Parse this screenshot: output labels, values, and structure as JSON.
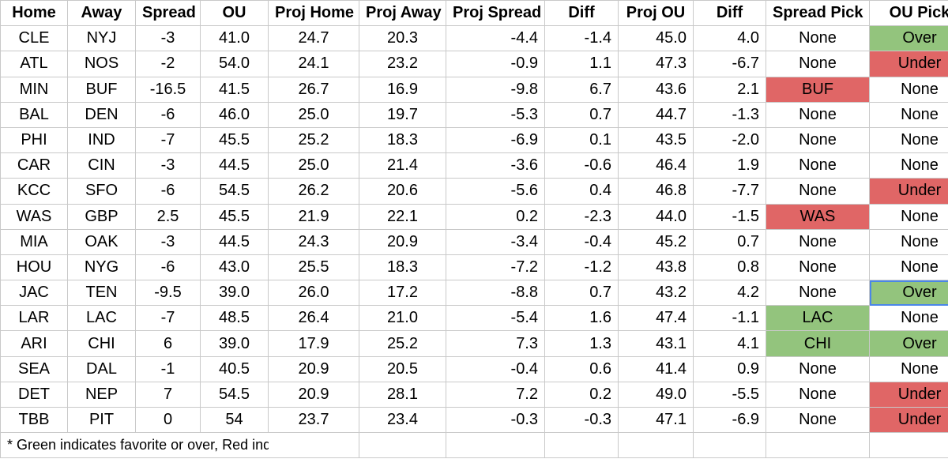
{
  "headers": [
    "Home",
    "Away",
    "Spread",
    "OU",
    "Proj Home",
    "Proj Away",
    "Proj Spread",
    "Diff",
    "Proj OU",
    "Diff",
    "Spread Pick",
    "OU Pick"
  ],
  "rows": [
    {
      "home": "CLE",
      "away": "NYJ",
      "spread": "-3",
      "ou": "41.0",
      "proj_home": "24.7",
      "proj_away": "20.3",
      "proj_spread": "-4.4",
      "diff1": "-1.4",
      "proj_ou": "45.0",
      "diff2": "4.0",
      "spread_pick": "None",
      "ou_pick": "Over"
    },
    {
      "home": "ATL",
      "away": "NOS",
      "spread": "-2",
      "ou": "54.0",
      "proj_home": "24.1",
      "proj_away": "23.2",
      "proj_spread": "-0.9",
      "diff1": "1.1",
      "proj_ou": "47.3",
      "diff2": "-6.7",
      "spread_pick": "None",
      "ou_pick": "Under"
    },
    {
      "home": "MIN",
      "away": "BUF",
      "spread": "-16.5",
      "ou": "41.5",
      "proj_home": "26.7",
      "proj_away": "16.9",
      "proj_spread": "-9.8",
      "diff1": "6.7",
      "proj_ou": "43.6",
      "diff2": "2.1",
      "spread_pick": "BUF",
      "ou_pick": "None"
    },
    {
      "home": "BAL",
      "away": "DEN",
      "spread": "-6",
      "ou": "46.0",
      "proj_home": "25.0",
      "proj_away": "19.7",
      "proj_spread": "-5.3",
      "diff1": "0.7",
      "proj_ou": "44.7",
      "diff2": "-1.3",
      "spread_pick": "None",
      "ou_pick": "None"
    },
    {
      "home": "PHI",
      "away": "IND",
      "spread": "-7",
      "ou": "45.5",
      "proj_home": "25.2",
      "proj_away": "18.3",
      "proj_spread": "-6.9",
      "diff1": "0.1",
      "proj_ou": "43.5",
      "diff2": "-2.0",
      "spread_pick": "None",
      "ou_pick": "None"
    },
    {
      "home": "CAR",
      "away": "CIN",
      "spread": "-3",
      "ou": "44.5",
      "proj_home": "25.0",
      "proj_away": "21.4",
      "proj_spread": "-3.6",
      "diff1": "-0.6",
      "proj_ou": "46.4",
      "diff2": "1.9",
      "spread_pick": "None",
      "ou_pick": "None"
    },
    {
      "home": "KCC",
      "away": "SFO",
      "spread": "-6",
      "ou": "54.5",
      "proj_home": "26.2",
      "proj_away": "20.6",
      "proj_spread": "-5.6",
      "diff1": "0.4",
      "proj_ou": "46.8",
      "diff2": "-7.7",
      "spread_pick": "None",
      "ou_pick": "Under"
    },
    {
      "home": "WAS",
      "away": "GBP",
      "spread": "2.5",
      "ou": "45.5",
      "proj_home": "21.9",
      "proj_away": "22.1",
      "proj_spread": "0.2",
      "diff1": "-2.3",
      "proj_ou": "44.0",
      "diff2": "-1.5",
      "spread_pick": "WAS",
      "ou_pick": "None"
    },
    {
      "home": "MIA",
      "away": "OAK",
      "spread": "-3",
      "ou": "44.5",
      "proj_home": "24.3",
      "proj_away": "20.9",
      "proj_spread": "-3.4",
      "diff1": "-0.4",
      "proj_ou": "45.2",
      "diff2": "0.7",
      "spread_pick": "None",
      "ou_pick": "None"
    },
    {
      "home": "HOU",
      "away": "NYG",
      "spread": "-6",
      "ou": "43.0",
      "proj_home": "25.5",
      "proj_away": "18.3",
      "proj_spread": "-7.2",
      "diff1": "-1.2",
      "proj_ou": "43.8",
      "diff2": "0.8",
      "spread_pick": "None",
      "ou_pick": "None"
    },
    {
      "home": "JAC",
      "away": "TEN",
      "spread": "-9.5",
      "ou": "39.0",
      "proj_home": "26.0",
      "proj_away": "17.2",
      "proj_spread": "-8.8",
      "diff1": "0.7",
      "proj_ou": "43.2",
      "diff2": "4.2",
      "spread_pick": "None",
      "ou_pick": "Over"
    },
    {
      "home": "LAR",
      "away": "LAC",
      "spread": "-7",
      "ou": "48.5",
      "proj_home": "26.4",
      "proj_away": "21.0",
      "proj_spread": "-5.4",
      "diff1": "1.6",
      "proj_ou": "47.4",
      "diff2": "-1.1",
      "spread_pick": "LAC",
      "ou_pick": "None"
    },
    {
      "home": "ARI",
      "away": "CHI",
      "spread": "6",
      "ou": "39.0",
      "proj_home": "17.9",
      "proj_away": "25.2",
      "proj_spread": "7.3",
      "diff1": "1.3",
      "proj_ou": "43.1",
      "diff2": "4.1",
      "spread_pick": "CHI",
      "ou_pick": "Over"
    },
    {
      "home": "SEA",
      "away": "DAL",
      "spread": "-1",
      "ou": "40.5",
      "proj_home": "20.9",
      "proj_away": "20.5",
      "proj_spread": "-0.4",
      "diff1": "0.6",
      "proj_ou": "41.4",
      "diff2": "0.9",
      "spread_pick": "None",
      "ou_pick": "None"
    },
    {
      "home": "DET",
      "away": "NEP",
      "spread": "7",
      "ou": "54.5",
      "proj_home": "20.9",
      "proj_away": "28.1",
      "proj_spread": "7.2",
      "diff1": "0.2",
      "proj_ou": "49.0",
      "diff2": "-5.5",
      "spread_pick": "None",
      "ou_pick": "Under"
    },
    {
      "home": "TBB",
      "away": "PIT",
      "spread": "0",
      "ou": "54",
      "proj_home": "23.7",
      "proj_away": "23.4",
      "proj_spread": "-0.3",
      "diff1": "-0.3",
      "proj_ou": "47.1",
      "diff2": "-6.9",
      "spread_pick": "None",
      "ou_pick": "Under"
    }
  ],
  "highlights": {
    "green": "#93c47d",
    "red": "#e06666",
    "spread_pick": [
      "",
      "",
      "red",
      "",
      "",
      "",
      "",
      "red",
      "",
      "",
      "",
      "green",
      "green",
      "",
      "",
      ""
    ],
    "ou_pick": [
      "green",
      "red",
      "",
      "",
      "",
      "",
      "red",
      "",
      "",
      "",
      "green",
      "",
      "green",
      "",
      "red",
      "red"
    ],
    "selected_cell": {
      "row": 10,
      "column": "ou_pick"
    }
  },
  "footnote": "* Green indicates favorite or over, Red indicates underdog or under"
}
